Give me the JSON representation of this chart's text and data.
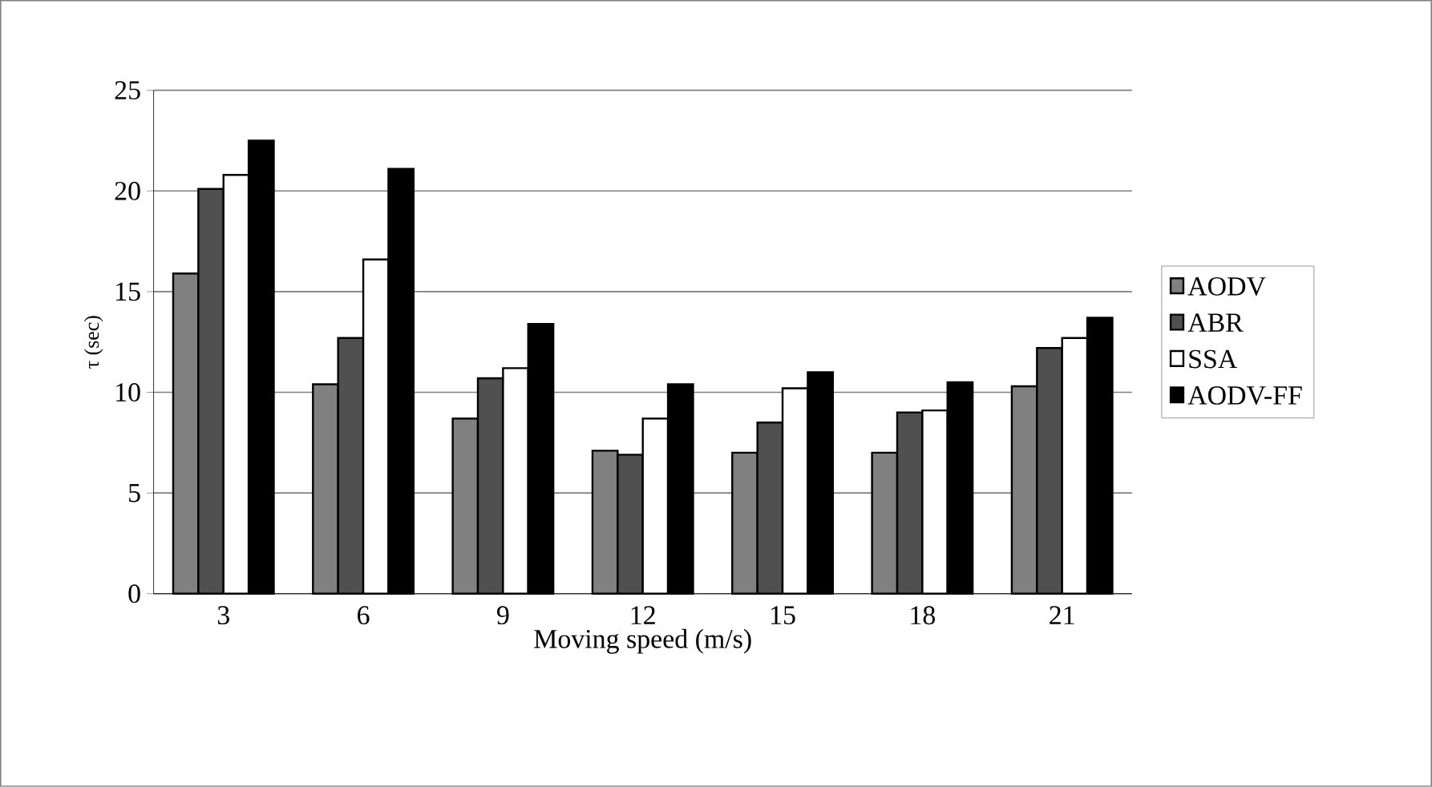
{
  "chart_data": {
    "type": "bar",
    "xlabel": "Moving speed (m/s)",
    "ylabel": "τ (sec)",
    "categories": [
      "3",
      "6",
      "9",
      "12",
      "15",
      "18",
      "21"
    ],
    "series": [
      {
        "name": "AODV",
        "color": "#808080",
        "values": [
          15.9,
          10.4,
          8.7,
          7.1,
          7.0,
          7.0,
          10.3
        ]
      },
      {
        "name": "ABR",
        "color": "#505050",
        "values": [
          20.1,
          12.7,
          10.7,
          6.9,
          8.5,
          9.0,
          12.2
        ]
      },
      {
        "name": "SSA",
        "color": "#ffffff",
        "values": [
          20.8,
          16.6,
          11.2,
          8.7,
          10.2,
          9.1,
          12.7
        ]
      },
      {
        "name": "AODV-FF",
        "color": "#000000",
        "values": [
          22.5,
          21.1,
          13.4,
          10.4,
          11.0,
          10.5,
          13.7
        ]
      }
    ],
    "ylim": [
      0,
      25
    ],
    "yticks": [
      0,
      5,
      10,
      15,
      20,
      25
    ],
    "grid": "y",
    "legend": "right"
  }
}
